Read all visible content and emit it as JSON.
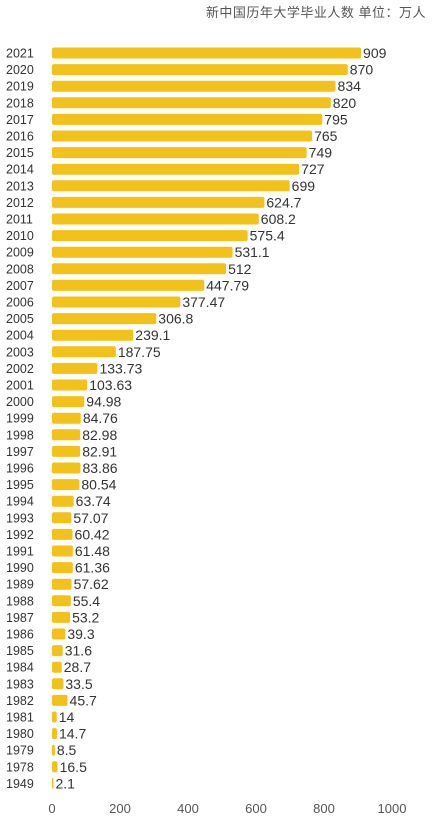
{
  "chart_data": {
    "type": "bar",
    "orientation": "horizontal",
    "title": "新中国历年大学毕业人数  单位：万人",
    "bar_color": "#F2C21A",
    "xlim": [
      0,
      1000
    ],
    "xticks": [
      "0",
      "200",
      "400",
      "600",
      "800",
      "1000"
    ],
    "grid": false,
    "categories": [
      "2021",
      "2020",
      "2019",
      "2018",
      "2017",
      "2016",
      "2015",
      "2014",
      "2013",
      "2012",
      "2011",
      "2010",
      "2009",
      "2008",
      "2007",
      "2006",
      "2005",
      "2004",
      "2003",
      "2002",
      "2001",
      "2000",
      "1999",
      "1998",
      "1997",
      "1996",
      "1995",
      "1994",
      "1993",
      "1992",
      "1991",
      "1990",
      "1989",
      "1988",
      "1987",
      "1986",
      "1985",
      "1984",
      "1983",
      "1982",
      "1981",
      "1980",
      "1979",
      "1978",
      "1949"
    ],
    "values": [
      909,
      870,
      834,
      820,
      795,
      765,
      749,
      727,
      699,
      624.7,
      608.2,
      575.4,
      531.1,
      512,
      447.79,
      377.47,
      306.8,
      239.1,
      187.75,
      133.73,
      103.63,
      94.98,
      84.76,
      82.98,
      82.91,
      83.86,
      80.54,
      63.74,
      57.07,
      60.42,
      61.48,
      61.36,
      57.62,
      55.4,
      53.2,
      39.3,
      31.6,
      28.7,
      33.5,
      45.7,
      14,
      14.7,
      8.5,
      16.5,
      2.1
    ],
    "value_labels": [
      "909",
      "870",
      "834",
      "820",
      "795",
      "765",
      "749",
      "727",
      "699",
      "624.7",
      "608.2",
      "575.4",
      "531.1",
      "512",
      "447.79",
      "377.47",
      "306.8",
      "239.1",
      "187.75",
      "133.73",
      "103.63",
      "94.98",
      "84.76",
      "82.98",
      "82.91",
      "83.86",
      "80.54",
      "63.74",
      "57.07",
      "60.42",
      "61.48",
      "61.36",
      "57.62",
      "55.4",
      "53.2",
      "39.3",
      "31.6",
      "28.7",
      "33.5",
      "45.7",
      "14",
      "14.7",
      "8.5",
      "16.5",
      "2.1"
    ]
  }
}
